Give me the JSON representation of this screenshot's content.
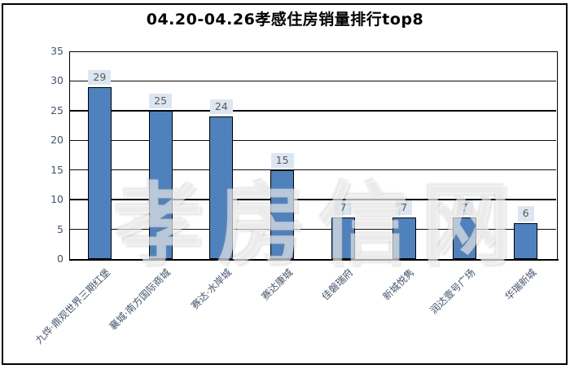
{
  "title": "04.20-04.26孝感住房销量排行top8",
  "watermark": "孝房信网",
  "chart_data": {
    "type": "bar",
    "title": "04.20-04.26孝感住房销量排行top8",
    "categories": [
      "九烨·鼎观世界三期红堡",
      "襄城·南方国际商城",
      "赛达·水岸城",
      "赛达康城",
      "佳磐瑞府",
      "新城悦隽",
      "润达壹号广场",
      "华瑞新城"
    ],
    "values": [
      29,
      25,
      24,
      15,
      7,
      7,
      7,
      6
    ],
    "xlabel": "",
    "ylabel": "",
    "ylim": [
      0,
      35
    ],
    "ytick_step": 5,
    "yticks": [
      0,
      5,
      10,
      15,
      20,
      25,
      30,
      35
    ],
    "grid": "horizontal",
    "legend": "none",
    "colors": {
      "bar_fill": "#4f81bd",
      "bar_border": "#000000",
      "value_label_bg": "#dce6f2",
      "value_label_text": "#595959",
      "axis_text": "#44546a",
      "gridline": "#0a0a0a",
      "title_text": "#000000"
    }
  }
}
